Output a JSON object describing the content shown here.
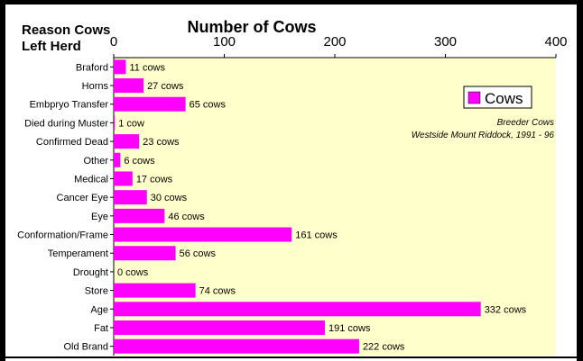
{
  "chart_data": {
    "type": "bar",
    "orientation": "horizontal",
    "title": "Number of Cows",
    "category_axis_title": "Reason Cows Left Herd",
    "xlim": [
      0,
      400
    ],
    "x_ticks": [
      0,
      100,
      200,
      300,
      400
    ],
    "x_axis_position": "top",
    "grid": false,
    "plot_background": "#ffffcc",
    "bar_color": "#ff00ff",
    "legend": {
      "label": "Cows",
      "position": "top-right"
    },
    "annotation": {
      "line1": "Breeder Cows",
      "line2": "Westside Mount Riddock,  1991 - 96"
    },
    "categories": [
      "Braford",
      "Horns",
      "Embpryo Transfer",
      "Died during Muster",
      "Confirmed Dead",
      "Other",
      "Medical",
      "Cancer Eye",
      "Eye",
      "Conformation/Frame",
      "Temperament",
      "Drought",
      "Store",
      "Age",
      "Fat",
      "Old Brand"
    ],
    "values": [
      11,
      27,
      65,
      1,
      23,
      6,
      17,
      30,
      46,
      161,
      56,
      0,
      74,
      332,
      191,
      222
    ],
    "data_labels": [
      "11 cows",
      "27 cows",
      "65 cows",
      "1 cow",
      "23 cows",
      "6  cows",
      "17 cows",
      "30 cows",
      "46 cows",
      "161 cows",
      "56 cows",
      "0  cows",
      "74 cows",
      "332  cows",
      "191  cows",
      "222  cows"
    ]
  }
}
